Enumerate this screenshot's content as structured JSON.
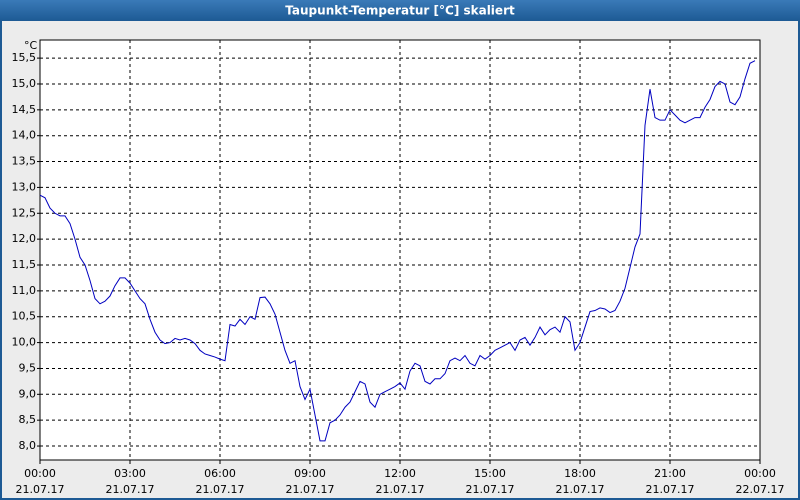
{
  "chart_data": {
    "type": "line",
    "title": "Taupunkt-Temperatur [°C] skaliert",
    "y_unit": "°C",
    "x": [
      0,
      10,
      20,
      30,
      40,
      50,
      60,
      70,
      80,
      90,
      100,
      110,
      120,
      130,
      140,
      150,
      160,
      170,
      180,
      190,
      200,
      210,
      220,
      230,
      240,
      250,
      260,
      270,
      280,
      290,
      300,
      310,
      320,
      330,
      340,
      350,
      360,
      370,
      380,
      390,
      400,
      410,
      420,
      430,
      440,
      450,
      460,
      470,
      480,
      490,
      500,
      510,
      520,
      530,
      540,
      550,
      560,
      570,
      580,
      590,
      600,
      610,
      620,
      630,
      640,
      650,
      660,
      670,
      680,
      690,
      700,
      710,
      720,
      730,
      740,
      750,
      760,
      770,
      780,
      790,
      800,
      810,
      820,
      830,
      840,
      850,
      860,
      870,
      880,
      890,
      900,
      910,
      920,
      930,
      940,
      950,
      960,
      970,
      980,
      990,
      1000,
      1010,
      1020,
      1030,
      1040,
      1050,
      1060,
      1070,
      1080,
      1090,
      1100,
      1110,
      1120,
      1130,
      1140,
      1150,
      1160,
      1170,
      1180,
      1190,
      1200,
      1210,
      1220,
      1230,
      1240,
      1250,
      1260,
      1270,
      1280,
      1290,
      1300,
      1310,
      1320,
      1330,
      1340,
      1350,
      1360,
      1370,
      1380,
      1390,
      1400,
      1410,
      1420,
      1430
    ],
    "series": [
      {
        "color": "#0000c0",
        "values": [
          12.85,
          12.8,
          12.6,
          12.5,
          12.45,
          12.45,
          12.3,
          12.0,
          11.65,
          11.5,
          11.2,
          10.85,
          10.75,
          10.8,
          10.9,
          11.1,
          11.25,
          11.25,
          11.15,
          11.0,
          10.85,
          10.75,
          10.45,
          10.2,
          10.05,
          9.98,
          10.0,
          10.08,
          10.05,
          10.08,
          10.05,
          9.98,
          9.85,
          9.78,
          9.75,
          9.72,
          9.68,
          9.65,
          10.35,
          10.32,
          10.45,
          10.35,
          10.5,
          10.45,
          10.87,
          10.88,
          10.75,
          10.55,
          10.2,
          9.85,
          9.6,
          9.65,
          9.15,
          8.9,
          9.1,
          8.6,
          8.1,
          8.1,
          8.45,
          8.5,
          8.6,
          8.75,
          8.85,
          9.05,
          9.25,
          9.2,
          8.85,
          8.75,
          9.0,
          9.05,
          9.1,
          9.15,
          9.22,
          9.1,
          9.45,
          9.6,
          9.55,
          9.25,
          9.2,
          9.3,
          9.3,
          9.4,
          9.65,
          9.7,
          9.65,
          9.75,
          9.6,
          9.55,
          9.75,
          9.68,
          9.75,
          9.85,
          9.9,
          9.95,
          10.0,
          9.85,
          10.05,
          10.1,
          9.95,
          10.1,
          10.3,
          10.15,
          10.25,
          10.3,
          10.2,
          10.5,
          10.4,
          9.85,
          10.0,
          10.3,
          10.6,
          10.62,
          10.67,
          10.65,
          10.58,
          10.62,
          10.8,
          11.05,
          11.45,
          11.85,
          12.1,
          14.2,
          14.9,
          14.35,
          14.3,
          14.3,
          14.5,
          14.4,
          14.3,
          14.25,
          14.3,
          14.35,
          14.35,
          14.55,
          14.7,
          14.95,
          15.05,
          15.0,
          14.65,
          14.6,
          14.75,
          15.1,
          15.4,
          15.45
        ]
      }
    ],
    "xlim": [
      0,
      1440
    ],
    "xticks": [
      {
        "value": 0,
        "label": "00:00"
      },
      {
        "value": 180,
        "label": "03:00"
      },
      {
        "value": 360,
        "label": "06:00"
      },
      {
        "value": 540,
        "label": "09:00"
      },
      {
        "value": 720,
        "label": "12:00"
      },
      {
        "value": 900,
        "label": "15:00"
      },
      {
        "value": 1080,
        "label": "18:00"
      },
      {
        "value": 1260,
        "label": "21:00"
      },
      {
        "value": 1440,
        "label": "00:00"
      }
    ],
    "xtick_dates": [
      "21.07.17",
      "21.07.17",
      "21.07.17",
      "21.07.17",
      "21.07.17",
      "21.07.17",
      "21.07.17",
      "21.07.17",
      "22.07.17"
    ],
    "ylim": [
      7.73,
      15.85
    ],
    "yticks": [
      {
        "value": 8,
        "label": "8,0"
      },
      {
        "value": 8.5,
        "label": "8,5"
      },
      {
        "value": 9,
        "label": "9,0"
      },
      {
        "value": 9.5,
        "label": "9,5"
      },
      {
        "value": 10,
        "label": "10,0"
      },
      {
        "value": 10.5,
        "label": "10,5"
      },
      {
        "value": 11,
        "label": "11,0"
      },
      {
        "value": 11.5,
        "label": "11,5"
      },
      {
        "value": 12,
        "label": "12,0"
      },
      {
        "value": 12.5,
        "label": "12,5"
      },
      {
        "value": 13,
        "label": "13,0"
      },
      {
        "value": 13.5,
        "label": "13,5"
      },
      {
        "value": 14,
        "label": "14,0"
      },
      {
        "value": 14.5,
        "label": "14,5"
      },
      {
        "value": 15,
        "label": "15,0"
      },
      {
        "value": 15.5,
        "label": "15,5"
      }
    ],
    "grid": true
  }
}
